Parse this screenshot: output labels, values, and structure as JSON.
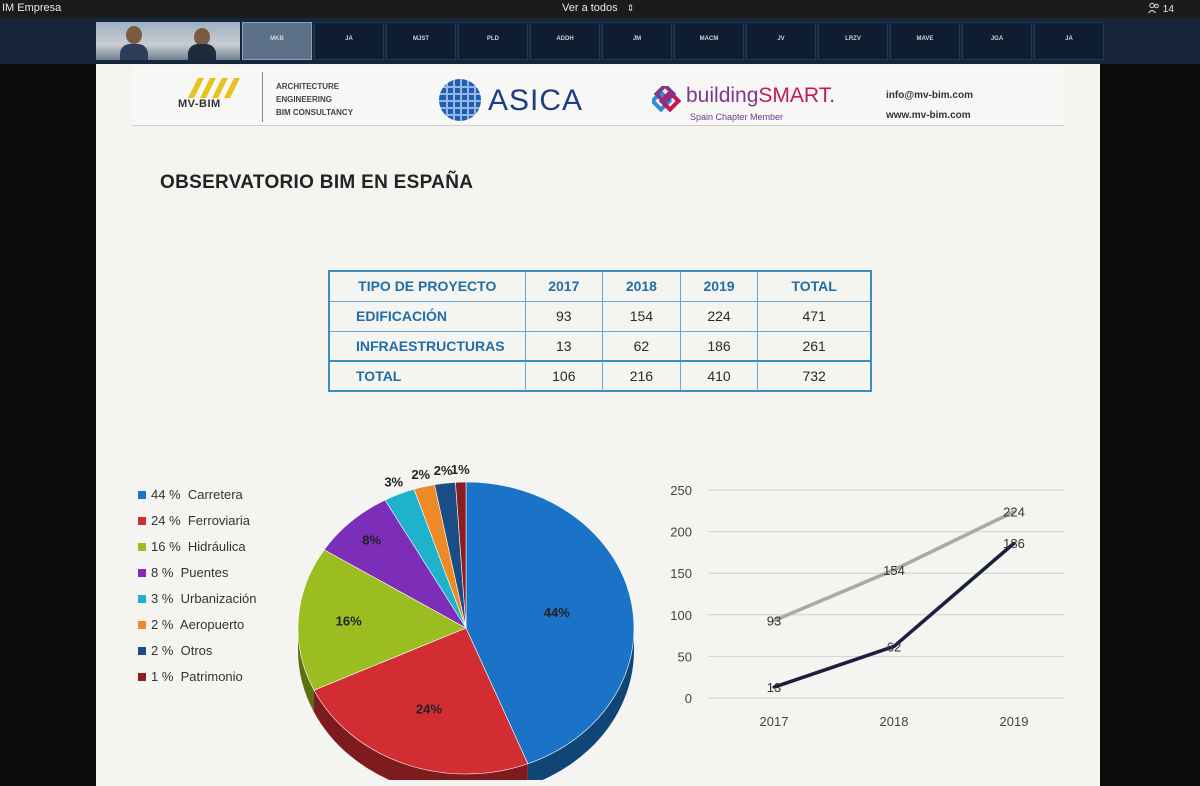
{
  "topbar": {
    "app_title": "IM Empresa",
    "view_label": "Ver a todos",
    "participants_count": "14"
  },
  "video_strip": {
    "tiles": [
      "MKB",
      "JA",
      "MJST",
      "PLD",
      "ADDH",
      "JM",
      "MACM",
      "JV",
      "LRZV",
      "MAVE",
      "JGA",
      "JA"
    ]
  },
  "slide": {
    "brand": {
      "mvbim": "MV-BIM",
      "lines": [
        "ARCHITECTURE",
        "ENGINEERING",
        "BIM CONSULTANCY"
      ],
      "asica": "ASICA",
      "buildingsmart_a": "building",
      "buildingsmart_b": "SMART.",
      "buildingsmart_sub": "Spain Chapter Member",
      "email": "info@mv-bim.com",
      "web": "www.mv-bim.com"
    },
    "title": "OBSERVATORIO BIM EN ESPAÑA",
    "table": {
      "headers": [
        "TIPO DE PROYECTO",
        "2017",
        "2018",
        "2019",
        "TOTAL"
      ],
      "rows": [
        [
          "EDIFICACIÓN",
          "93",
          "154",
          "224",
          "471"
        ],
        [
          "INFRAESTRUCTURAS",
          "13",
          "62",
          "186",
          "261"
        ],
        [
          "TOTAL",
          "106",
          "216",
          "410",
          "732"
        ]
      ]
    }
  },
  "chart_data": [
    {
      "type": "pie",
      "slices": [
        {
          "label": "Carretera",
          "value": 44,
          "display": "44 %",
          "color": "#1a73c7"
        },
        {
          "label": "Ferroviaria",
          "value": 24,
          "display": "24 %",
          "color": "#d22d32"
        },
        {
          "label": "Hidráulica",
          "value": 16,
          "display": "16 %",
          "color": "#9bbd1f"
        },
        {
          "label": "Puentes",
          "value": 8,
          "display": "8 %",
          "color": "#7c2eb8"
        },
        {
          "label": "Urbanización",
          "value": 3,
          "display": "3 %",
          "color": "#1fb2cc"
        },
        {
          "label": "Aeropuerto",
          "value": 2,
          "display": "2 %",
          "color": "#ee8a25"
        },
        {
          "label": "Otros",
          "value": 2,
          "display": "2 %",
          "color": "#1a4c86"
        },
        {
          "label": "Patrimonio",
          "value": 1,
          "display": "1 %",
          "color": "#8a1d1d"
        }
      ],
      "data_labels": [
        "44%",
        "24%",
        "16%",
        "8%",
        "3%",
        "2%",
        "2%",
        "1%"
      ],
      "legend_position": "left"
    },
    {
      "type": "line",
      "x": [
        "2017",
        "2018",
        "2019"
      ],
      "series": [
        {
          "values": [
            93,
            154,
            224
          ],
          "color": "#a9aaa8"
        },
        {
          "values": [
            13,
            62,
            186
          ],
          "color": "#1a1f3d"
        }
      ],
      "ylim": [
        0,
        250
      ],
      "yticks": [
        "0",
        "50",
        "100",
        "150",
        "200",
        "250"
      ],
      "grid": true
    }
  ]
}
